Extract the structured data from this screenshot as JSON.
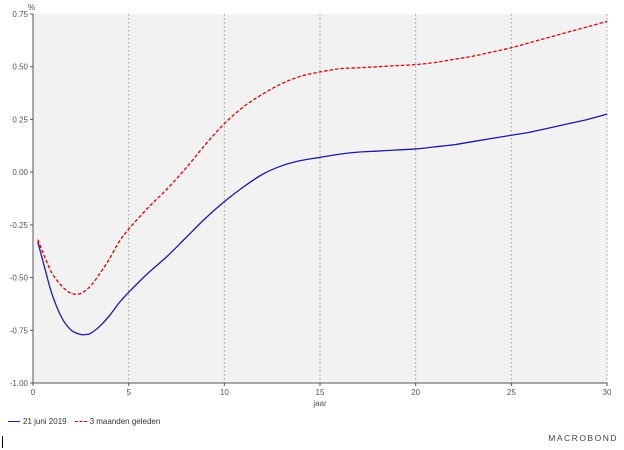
{
  "chart_data": {
    "type": "line",
    "title": "",
    "ylabel": "%",
    "xlabel": "jaar",
    "xlim": [
      0,
      30
    ],
    "ylim": [
      -1.0,
      0.75
    ],
    "xticks": [
      0,
      5,
      10,
      15,
      20,
      25,
      30
    ],
    "yticks": [
      -1.0,
      -0.75,
      -0.5,
      -0.25,
      0.0,
      0.25,
      0.5,
      0.75
    ],
    "xtick_labels": [
      "0",
      "5",
      "10",
      "15",
      "20",
      "25",
      "30"
    ],
    "ytick_labels": [
      "-1.00",
      "-0.75",
      "-0.50",
      "-0.25",
      "0.00",
      "0.25",
      "0.50",
      "0.75"
    ],
    "grid": "vertical dotted at major x ticks",
    "legend_position": "bottom-left",
    "series": [
      {
        "name": "21 juni 2019",
        "color": "#1a1aa8",
        "style": "solid",
        "x": [
          0.25,
          0.6,
          1.0,
          1.5,
          2.0,
          2.5,
          2.75,
          3.0,
          3.5,
          4.0,
          4.5,
          5.0,
          6.0,
          7.0,
          8.0,
          9.0,
          10.0,
          11.0,
          12.0,
          13.0,
          14.0,
          15.0,
          16.0,
          17.0,
          18.0,
          19.0,
          20.0,
          21.0,
          22.0,
          23.0,
          24.0,
          25.0,
          26.0,
          27.0,
          28.0,
          29.0,
          30.0
        ],
        "y": [
          -0.33,
          -0.45,
          -0.58,
          -0.69,
          -0.75,
          -0.77,
          -0.77,
          -0.765,
          -0.73,
          -0.68,
          -0.62,
          -0.57,
          -0.48,
          -0.4,
          -0.31,
          -0.22,
          -0.14,
          -0.07,
          -0.01,
          0.03,
          0.055,
          0.07,
          0.085,
          0.095,
          0.1,
          0.105,
          0.11,
          0.12,
          0.13,
          0.145,
          0.16,
          0.175,
          0.19,
          0.21,
          0.23,
          0.25,
          0.275
        ]
      },
      {
        "name": "3 maanden geleden",
        "color": "#e60000",
        "style": "dashed",
        "x": [
          0.25,
          0.6,
          1.0,
          1.5,
          2.0,
          2.5,
          3.0,
          3.5,
          4.0,
          4.5,
          5.0,
          6.0,
          7.0,
          8.0,
          9.0,
          10.0,
          11.0,
          12.0,
          13.0,
          14.0,
          15.0,
          16.0,
          17.0,
          18.0,
          19.0,
          20.0,
          21.0,
          22.0,
          23.0,
          24.0,
          25.0,
          26.0,
          27.0,
          28.0,
          29.0,
          30.0
        ],
        "y": [
          -0.32,
          -0.4,
          -0.48,
          -0.54,
          -0.575,
          -0.575,
          -0.54,
          -0.48,
          -0.41,
          -0.33,
          -0.27,
          -0.17,
          -0.08,
          0.02,
          0.13,
          0.23,
          0.31,
          0.37,
          0.42,
          0.455,
          0.475,
          0.49,
          0.495,
          0.5,
          0.505,
          0.51,
          0.52,
          0.535,
          0.55,
          0.57,
          0.59,
          0.615,
          0.64,
          0.665,
          0.69,
          0.715
        ]
      }
    ]
  },
  "brand": "MACROBOND"
}
